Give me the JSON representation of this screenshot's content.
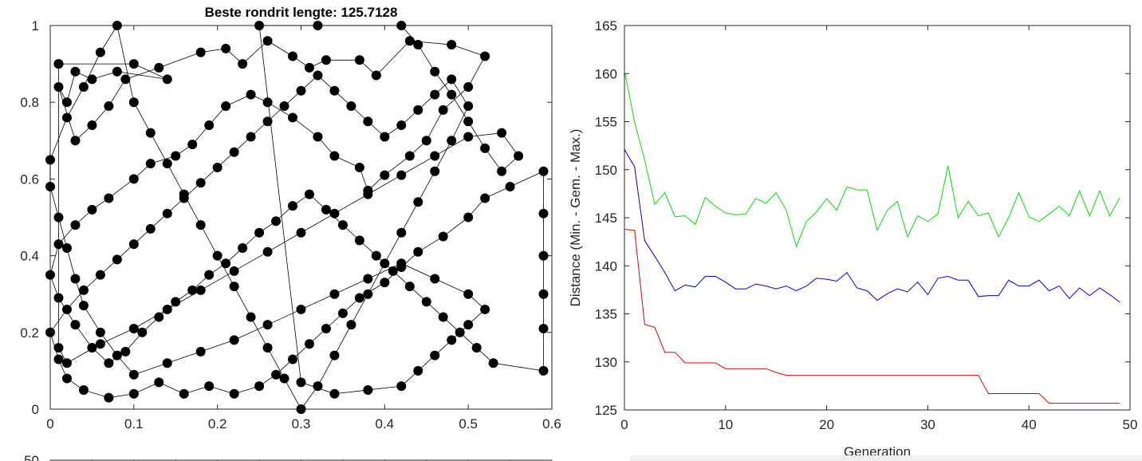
{
  "chart_data": [
    {
      "type": "scatter",
      "title": "Beste rondrit lengte: 125.7128",
      "xlim": [
        0,
        0.6
      ],
      "ylim": [
        0,
        1
      ],
      "xticks": [
        "0",
        "0.1",
        "0.2",
        "0.3",
        "0.4",
        "0.5",
        "0.6"
      ],
      "yticks": [
        "0",
        "0.2",
        "0.4",
        "0.6",
        "0.8",
        "1"
      ],
      "grid": false,
      "description": "best tour of TSP cities, points connected by line segments in tour order",
      "tour": [
        [
          0.01,
          0.9
        ],
        [
          0.1,
          0.9
        ],
        [
          0.14,
          0.86
        ],
        [
          0.08,
          0.88
        ],
        [
          0.05,
          0.86
        ],
        [
          0.03,
          0.88
        ],
        [
          0.02,
          0.8
        ],
        [
          0.01,
          0.84
        ],
        [
          0.03,
          0.7
        ],
        [
          0.05,
          0.74
        ],
        [
          0.07,
          0.79
        ],
        [
          0.09,
          0.86
        ],
        [
          0.13,
          0.89
        ],
        [
          0.18,
          0.93
        ],
        [
          0.21,
          0.94
        ],
        [
          0.23,
          0.9
        ],
        [
          0.26,
          0.96
        ],
        [
          0.29,
          0.92
        ],
        [
          0.31,
          0.89
        ],
        [
          0.33,
          0.91
        ],
        [
          0.37,
          0.91
        ],
        [
          0.39,
          0.87
        ],
        [
          0.43,
          0.96
        ],
        [
          0.48,
          0.95
        ],
        [
          0.52,
          0.92
        ],
        [
          0.5,
          0.84
        ],
        [
          0.47,
          0.78
        ],
        [
          0.45,
          0.7
        ],
        [
          0.43,
          0.66
        ],
        [
          0.4,
          0.61
        ],
        [
          0.38,
          0.57
        ],
        [
          0.37,
          0.63
        ],
        [
          0.34,
          0.66
        ],
        [
          0.32,
          0.71
        ],
        [
          0.29,
          0.76
        ],
        [
          0.26,
          0.8
        ],
        [
          0.24,
          0.82
        ],
        [
          0.21,
          0.79
        ],
        [
          0.19,
          0.74
        ],
        [
          0.17,
          0.69
        ],
        [
          0.15,
          0.66
        ],
        [
          0.12,
          0.64
        ],
        [
          0.1,
          0.6
        ],
        [
          0.07,
          0.55
        ],
        [
          0.05,
          0.52
        ],
        [
          0.03,
          0.48
        ],
        [
          0.01,
          0.43
        ],
        [
          0.0,
          0.35
        ],
        [
          0.01,
          0.29
        ],
        [
          0.03,
          0.22
        ],
        [
          0.05,
          0.16
        ],
        [
          0.07,
          0.12
        ],
        [
          0.09,
          0.15
        ],
        [
          0.11,
          0.2
        ],
        [
          0.13,
          0.24
        ],
        [
          0.15,
          0.28
        ],
        [
          0.17,
          0.31
        ],
        [
          0.19,
          0.35
        ],
        [
          0.21,
          0.38
        ],
        [
          0.23,
          0.42
        ],
        [
          0.25,
          0.46
        ],
        [
          0.27,
          0.49
        ],
        [
          0.29,
          0.53
        ],
        [
          0.31,
          0.56
        ],
        [
          0.33,
          0.52
        ],
        [
          0.35,
          0.48
        ],
        [
          0.37,
          0.44
        ],
        [
          0.39,
          0.4
        ],
        [
          0.41,
          0.36
        ],
        [
          0.43,
          0.32
        ],
        [
          0.45,
          0.28
        ],
        [
          0.47,
          0.24
        ],
        [
          0.49,
          0.2
        ],
        [
          0.51,
          0.16
        ],
        [
          0.53,
          0.12
        ],
        [
          0.59,
          0.1
        ],
        [
          0.59,
          0.21
        ],
        [
          0.59,
          0.3
        ],
        [
          0.59,
          0.4
        ],
        [
          0.59,
          0.51
        ],
        [
          0.59,
          0.62
        ],
        [
          0.55,
          0.58
        ],
        [
          0.52,
          0.55
        ],
        [
          0.5,
          0.5
        ],
        [
          0.47,
          0.45
        ],
        [
          0.44,
          0.41
        ],
        [
          0.42,
          0.37
        ],
        [
          0.4,
          0.33
        ],
        [
          0.37,
          0.29
        ],
        [
          0.35,
          0.25
        ],
        [
          0.33,
          0.21
        ],
        [
          0.31,
          0.17
        ],
        [
          0.29,
          0.13
        ],
        [
          0.27,
          0.09
        ],
        [
          0.25,
          0.06
        ],
        [
          0.22,
          0.04
        ],
        [
          0.19,
          0.06
        ],
        [
          0.16,
          0.04
        ],
        [
          0.13,
          0.07
        ],
        [
          0.1,
          0.04
        ],
        [
          0.07,
          0.03
        ],
        [
          0.04,
          0.05
        ],
        [
          0.02,
          0.08
        ],
        [
          0.01,
          0.13
        ],
        [
          0.0,
          0.2
        ],
        [
          0.02,
          0.26
        ],
        [
          0.04,
          0.31
        ],
        [
          0.06,
          0.35
        ],
        [
          0.08,
          0.39
        ],
        [
          0.1,
          0.43
        ],
        [
          0.12,
          0.47
        ],
        [
          0.14,
          0.51
        ],
        [
          0.16,
          0.55
        ],
        [
          0.18,
          0.59
        ],
        [
          0.2,
          0.63
        ],
        [
          0.22,
          0.67
        ],
        [
          0.24,
          0.71
        ],
        [
          0.26,
          0.75
        ],
        [
          0.28,
          0.79
        ],
        [
          0.3,
          0.83
        ],
        [
          0.32,
          0.87
        ],
        [
          0.34,
          0.83
        ],
        [
          0.36,
          0.79
        ],
        [
          0.38,
          0.75
        ],
        [
          0.4,
          0.71
        ],
        [
          0.42,
          0.74
        ],
        [
          0.44,
          0.78
        ],
        [
          0.46,
          0.82
        ],
        [
          0.48,
          0.86
        ],
        [
          0.5,
          0.79
        ],
        [
          0.48,
          0.7
        ],
        [
          0.46,
          0.62
        ],
        [
          0.44,
          0.54
        ],
        [
          0.42,
          0.46
        ],
        [
          0.4,
          0.38
        ],
        [
          0.38,
          0.3
        ],
        [
          0.36,
          0.22
        ],
        [
          0.34,
          0.14
        ],
        [
          0.32,
          0.06
        ],
        [
          0.3,
          0.0
        ],
        [
          0.28,
          0.08
        ],
        [
          0.26,
          0.16
        ],
        [
          0.24,
          0.24
        ],
        [
          0.22,
          0.32
        ],
        [
          0.2,
          0.4
        ],
        [
          0.18,
          0.48
        ],
        [
          0.16,
          0.56
        ],
        [
          0.14,
          0.64
        ],
        [
          0.12,
          0.72
        ],
        [
          0.1,
          0.8
        ],
        [
          0.08,
          1.0
        ],
        [
          0.06,
          0.93
        ],
        [
          0.04,
          0.84
        ],
        [
          0.02,
          0.76
        ],
        [
          0.0,
          0.65
        ],
        [
          0.0,
          0.58
        ],
        [
          0.01,
          0.5
        ],
        [
          0.02,
          0.42
        ],
        [
          0.03,
          0.34
        ],
        [
          0.04,
          0.27
        ],
        [
          0.06,
          0.2
        ],
        [
          0.08,
          0.14
        ],
        [
          0.1,
          0.09
        ],
        [
          0.14,
          0.12
        ],
        [
          0.18,
          0.15
        ],
        [
          0.22,
          0.18
        ],
        [
          0.26,
          0.22
        ],
        [
          0.3,
          0.26
        ],
        [
          0.34,
          0.3
        ],
        [
          0.38,
          0.34
        ],
        [
          0.42,
          0.38
        ],
        [
          0.46,
          0.34
        ],
        [
          0.5,
          0.3
        ],
        [
          0.52,
          0.26
        ],
        [
          0.5,
          0.22
        ],
        [
          0.48,
          0.18
        ],
        [
          0.46,
          0.14
        ],
        [
          0.44,
          0.1
        ],
        [
          0.42,
          0.06
        ],
        [
          0.38,
          0.05
        ],
        [
          0.34,
          0.04
        ],
        [
          0.3,
          0.07
        ],
        [
          0.25,
          1.0
        ],
        [
          0.32,
          1.0
        ],
        [
          0.42,
          1.0
        ],
        [
          0.44,
          0.95
        ],
        [
          0.46,
          0.88
        ],
        [
          0.48,
          0.82
        ],
        [
          0.5,
          0.75
        ],
        [
          0.52,
          0.68
        ],
        [
          0.54,
          0.62
        ],
        [
          0.56,
          0.66
        ],
        [
          0.54,
          0.72
        ],
        [
          0.5,
          0.71
        ],
        [
          0.46,
          0.66
        ],
        [
          0.42,
          0.61
        ],
        [
          0.38,
          0.56
        ],
        [
          0.34,
          0.51
        ],
        [
          0.3,
          0.46
        ],
        [
          0.26,
          0.41
        ],
        [
          0.22,
          0.36
        ],
        [
          0.18,
          0.31
        ],
        [
          0.14,
          0.26
        ],
        [
          0.1,
          0.21
        ],
        [
          0.06,
          0.17
        ],
        [
          0.02,
          0.12
        ],
        [
          0.01,
          0.16
        ],
        [
          0.01,
          0.9
        ]
      ]
    },
    {
      "type": "line",
      "title": "",
      "xlabel": "Generation",
      "ylabel": "Distance (Min. - Gem. - Max.)",
      "xlim": [
        0,
        50
      ],
      "ylim": [
        125,
        165
      ],
      "xticks": [
        "0",
        "10",
        "20",
        "30",
        "40",
        "50"
      ],
      "yticks": [
        "125",
        "130",
        "135",
        "140",
        "145",
        "150",
        "155",
        "160",
        "165"
      ],
      "grid": false,
      "x": [
        0,
        1,
        2,
        3,
        4,
        5,
        6,
        7,
        8,
        9,
        10,
        11,
        12,
        13,
        14,
        15,
        16,
        17,
        18,
        19,
        20,
        21,
        22,
        23,
        24,
        25,
        26,
        27,
        28,
        29,
        30,
        31,
        32,
        33,
        34,
        35,
        36,
        37,
        38,
        39,
        40,
        41,
        42,
        43,
        44,
        45,
        46,
        47,
        48,
        49
      ],
      "series": [
        {
          "color": "#00dd00",
          "values": [
            160.3,
            155.0,
            151.0,
            146.4,
            147.6,
            145.1,
            145.2,
            144.3,
            147.1,
            146.2,
            145.5,
            145.3,
            145.4,
            147.0,
            146.5,
            147.6,
            145.8,
            142.0,
            144.6,
            145.6,
            147.0,
            145.8,
            148.2,
            147.9,
            147.9,
            143.7,
            145.8,
            146.7,
            143.0,
            145.2,
            144.6,
            145.4,
            150.4,
            145.0,
            146.7,
            145.2,
            145.5,
            143.0,
            145.0,
            147.6,
            145.1,
            144.6,
            145.4,
            146.2,
            145.2,
            147.8,
            145.2,
            147.8,
            145.2,
            147.1
          ]
        },
        {
          "color": "#0000cc",
          "values": [
            152.1,
            150.3,
            142.6,
            141.0,
            139.3,
            137.4,
            138.0,
            137.8,
            138.9,
            138.9,
            138.3,
            137.6,
            137.6,
            138.1,
            137.9,
            137.6,
            137.9,
            137.4,
            137.9,
            138.7,
            138.6,
            138.4,
            139.3,
            137.7,
            137.4,
            136.4,
            137.1,
            137.6,
            137.3,
            138.3,
            137.0,
            138.7,
            138.9,
            138.5,
            138.5,
            136.8,
            136.9,
            136.9,
            138.5,
            137.9,
            137.9,
            138.5,
            137.4,
            137.9,
            136.6,
            137.7,
            136.9,
            137.7,
            137.0,
            136.2
          ]
        },
        {
          "color": "#dd0000",
          "values": [
            143.8,
            143.7,
            133.9,
            133.6,
            131.0,
            131.0,
            129.9,
            129.9,
            129.9,
            129.9,
            129.3,
            129.3,
            129.3,
            129.3,
            129.3,
            128.9,
            128.6,
            128.6,
            128.6,
            128.6,
            128.6,
            128.6,
            128.6,
            128.6,
            128.6,
            128.6,
            128.6,
            128.6,
            128.6,
            128.6,
            128.6,
            128.6,
            128.6,
            128.6,
            128.6,
            128.6,
            126.7,
            126.7,
            126.7,
            126.7,
            126.7,
            126.7,
            125.7,
            125.7,
            125.7,
            125.7,
            125.7,
            125.7,
            125.7,
            125.7
          ]
        }
      ]
    },
    {
      "type": "line",
      "title": "",
      "ytick_top": "50",
      "partial": true
    }
  ]
}
